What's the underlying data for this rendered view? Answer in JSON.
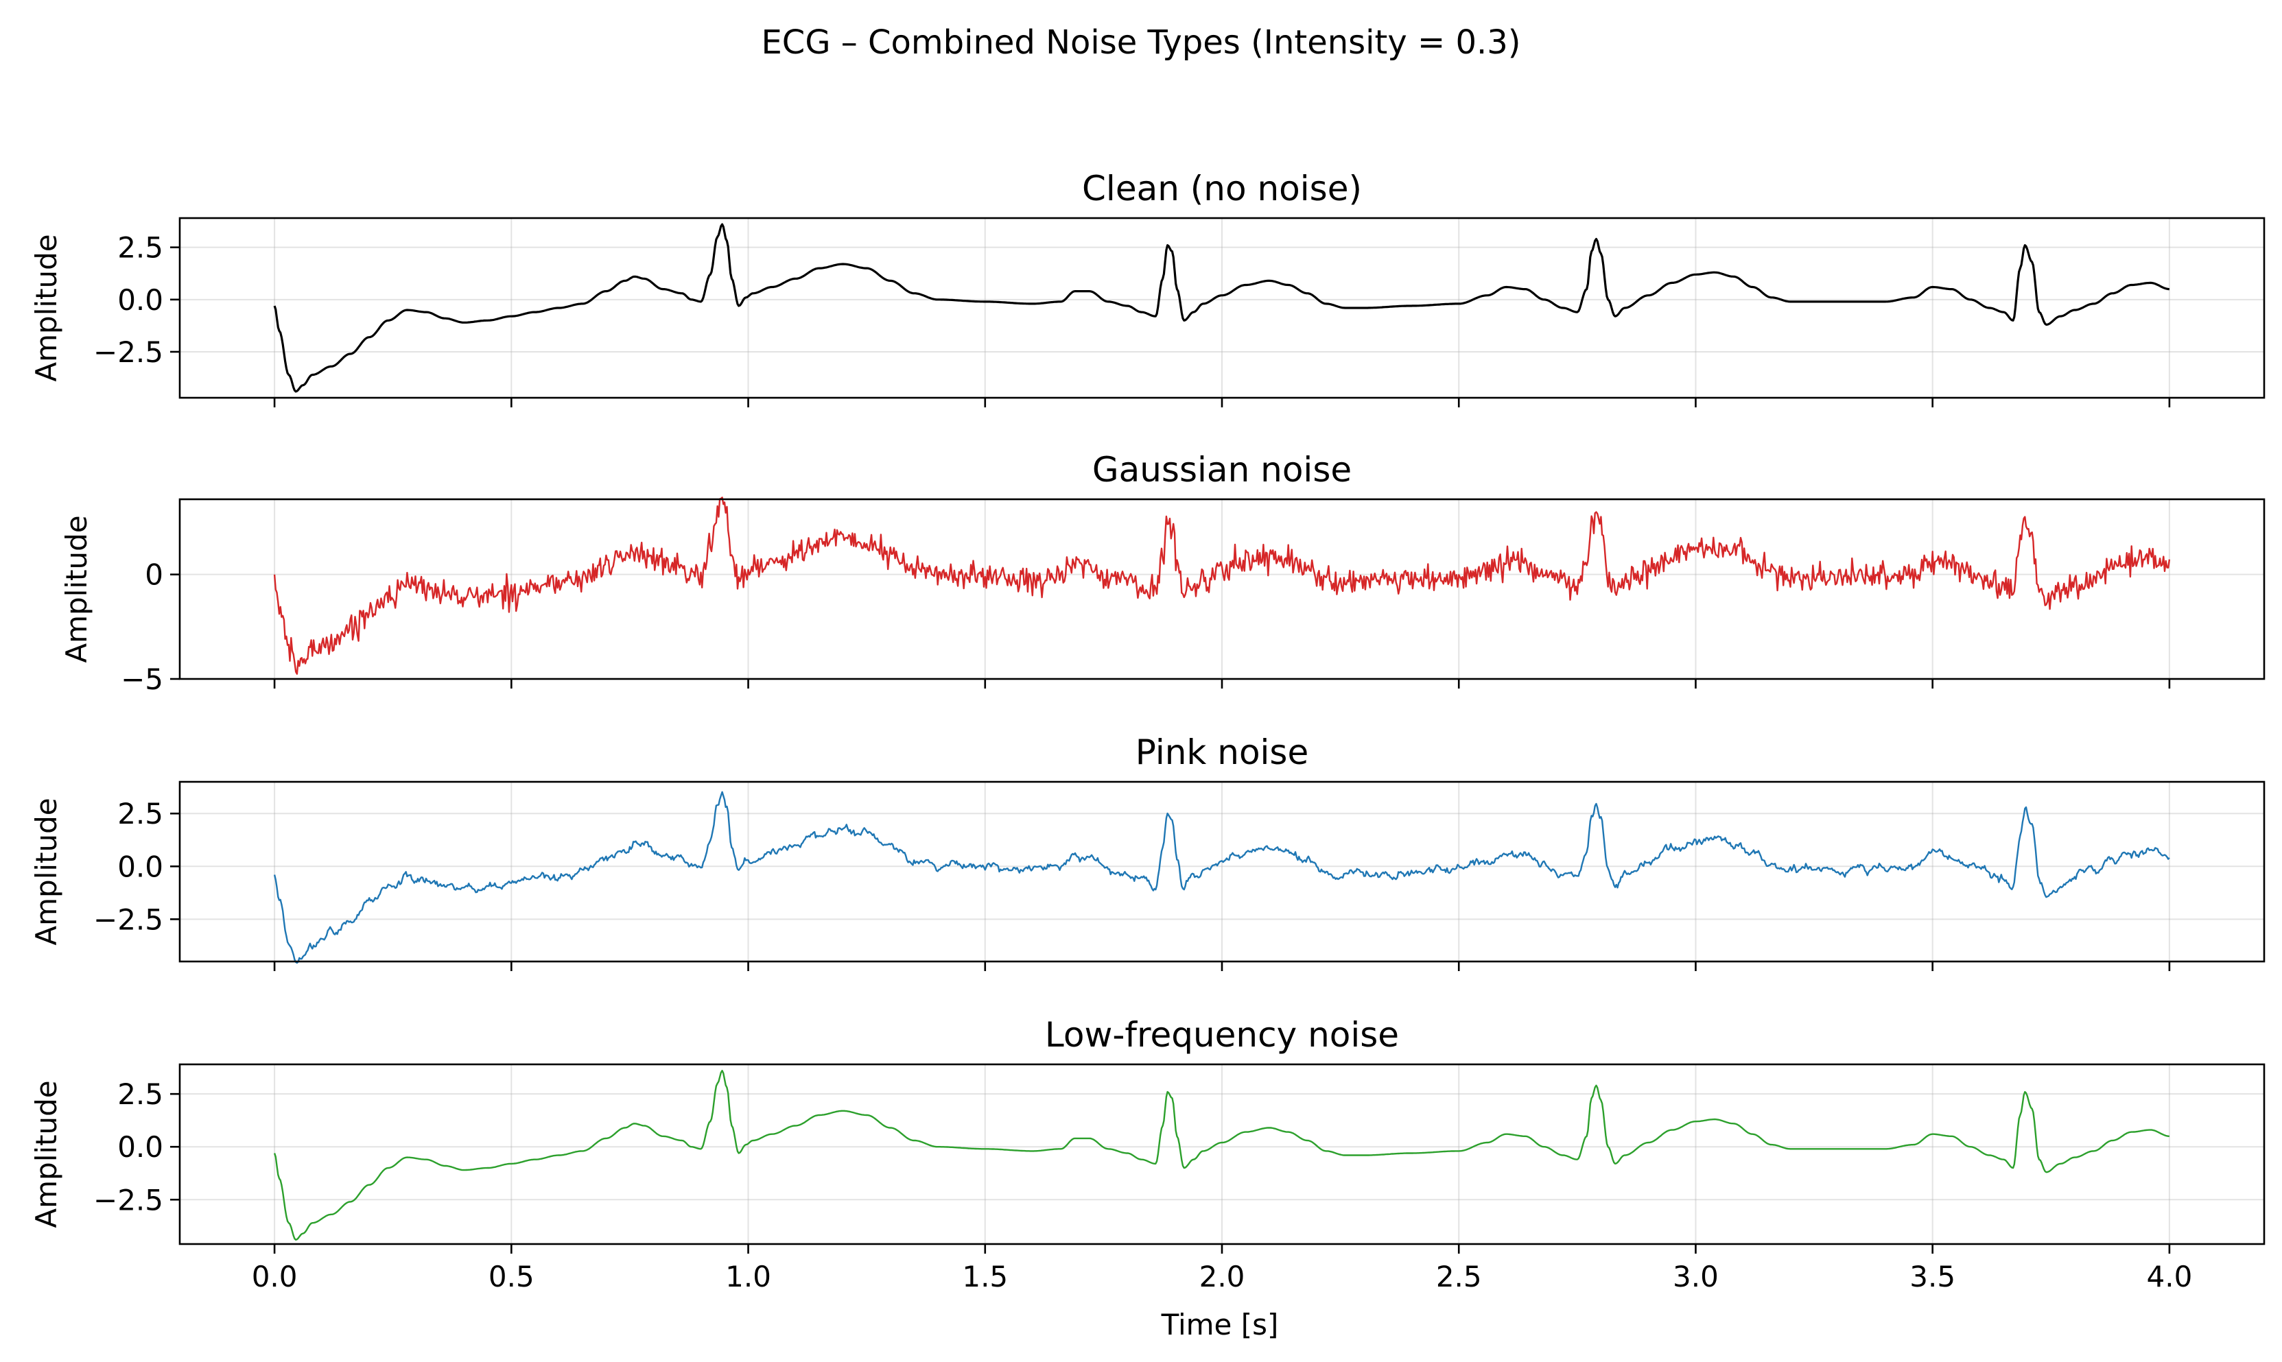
{
  "chart_data": {
    "type": "line",
    "suptitle": "ECG – Combined Noise Types (Intensity = 0.3)",
    "xlabel": "Time [s]",
    "xlim": [
      -0.2,
      4.2
    ],
    "xticks": [
      0.0,
      0.5,
      1.0,
      1.5,
      2.0,
      2.5,
      3.0,
      3.5,
      4.0
    ],
    "xtick_labels": [
      "0.0",
      "0.5",
      "1.0",
      "1.5",
      "2.0",
      "2.5",
      "3.0",
      "3.5",
      "4.0"
    ],
    "base_signal": {
      "x": [
        0.0,
        0.01,
        0.03,
        0.045,
        0.06,
        0.08,
        0.12,
        0.16,
        0.2,
        0.24,
        0.28,
        0.32,
        0.36,
        0.4,
        0.45,
        0.5,
        0.55,
        0.6,
        0.65,
        0.7,
        0.74,
        0.76,
        0.78,
        0.82,
        0.86,
        0.88,
        0.9,
        0.92,
        0.935,
        0.945,
        0.955,
        0.965,
        0.98,
        0.995,
        1.01,
        1.05,
        1.1,
        1.15,
        1.2,
        1.25,
        1.3,
        1.35,
        1.4,
        1.5,
        1.6,
        1.66,
        1.69,
        1.72,
        1.76,
        1.8,
        1.83,
        1.86,
        1.875,
        1.885,
        1.895,
        1.905,
        1.92,
        1.94,
        1.96,
        2.0,
        2.05,
        2.1,
        2.14,
        2.18,
        2.22,
        2.26,
        2.3,
        2.4,
        2.5,
        2.56,
        2.6,
        2.64,
        2.68,
        2.72,
        2.75,
        2.77,
        2.78,
        2.79,
        2.8,
        2.815,
        2.83,
        2.85,
        2.9,
        2.95,
        3.0,
        3.04,
        3.08,
        3.12,
        3.16,
        3.2,
        3.3,
        3.4,
        3.46,
        3.5,
        3.54,
        3.58,
        3.62,
        3.65,
        3.67,
        3.685,
        3.695,
        3.71,
        3.725,
        3.74,
        3.77,
        3.8,
        3.84,
        3.88,
        3.92,
        3.96,
        4.0
      ],
      "y": [
        -0.3,
        -1.5,
        -3.6,
        -4.4,
        -4.1,
        -3.6,
        -3.2,
        -2.6,
        -1.8,
        -1.0,
        -0.5,
        -0.6,
        -0.9,
        -1.1,
        -1.0,
        -0.8,
        -0.6,
        -0.4,
        -0.2,
        0.4,
        0.9,
        1.1,
        1.0,
        0.5,
        0.3,
        0.0,
        -0.1,
        1.2,
        3.0,
        3.6,
        2.8,
        1.0,
        -0.3,
        0.1,
        0.3,
        0.6,
        1.0,
        1.5,
        1.7,
        1.5,
        0.9,
        0.3,
        0.0,
        -0.1,
        -0.2,
        -0.1,
        0.4,
        0.4,
        -0.1,
        -0.3,
        -0.6,
        -0.8,
        1.0,
        2.6,
        2.3,
        0.5,
        -1.0,
        -0.6,
        -0.2,
        0.2,
        0.7,
        0.9,
        0.7,
        0.3,
        -0.2,
        -0.4,
        -0.4,
        -0.3,
        -0.2,
        0.2,
        0.6,
        0.5,
        0.0,
        -0.4,
        -0.6,
        0.5,
        2.3,
        2.9,
        2.2,
        0.0,
        -0.8,
        -0.4,
        0.2,
        0.8,
        1.2,
        1.3,
        1.1,
        0.6,
        0.1,
        -0.1,
        -0.1,
        -0.1,
        0.1,
        0.6,
        0.5,
        0.0,
        -0.4,
        -0.6,
        -1.0,
        1.5,
        2.6,
        1.8,
        -0.6,
        -1.2,
        -0.8,
        -0.5,
        -0.2,
        0.3,
        0.7,
        0.8,
        0.5
      ]
    },
    "subplots": [
      {
        "title": "Clean (no noise)",
        "ylabel": "Amplitude",
        "ylim": [
          -4.7,
          3.9
        ],
        "yticks": [
          -2.5,
          0.0,
          2.5
        ],
        "ytick_labels": [
          "−2.5",
          "0.0",
          "2.5"
        ],
        "color": "#000000",
        "noise": "none",
        "noise_std": 0.0
      },
      {
        "title": "Gaussian noise",
        "ylabel": "Amplitude",
        "ylim": [
          -5.0,
          3.6
        ],
        "yticks": [
          -5,
          0
        ],
        "ytick_labels": [
          "−5",
          "0"
        ],
        "color": "#d62728",
        "noise": "gaussian",
        "noise_std": 0.3
      },
      {
        "title": "Pink noise",
        "ylabel": "Amplitude",
        "ylim": [
          -4.5,
          4.0
        ],
        "yticks": [
          -2.5,
          0.0,
          2.5
        ],
        "ytick_labels": [
          "−2.5",
          "0.0",
          "2.5"
        ],
        "color": "#1f77b4",
        "noise": "pink",
        "noise_std": 0.12
      },
      {
        "title": "Low-frequency noise",
        "ylabel": "Amplitude",
        "ylim": [
          -4.6,
          3.9
        ],
        "yticks": [
          -2.5,
          0.0,
          2.5
        ],
        "ytick_labels": [
          "−2.5",
          "0.0",
          "2.5"
        ],
        "color": "#2ca02c",
        "noise": "low-frequency",
        "noise_std": 0.0
      }
    ]
  }
}
